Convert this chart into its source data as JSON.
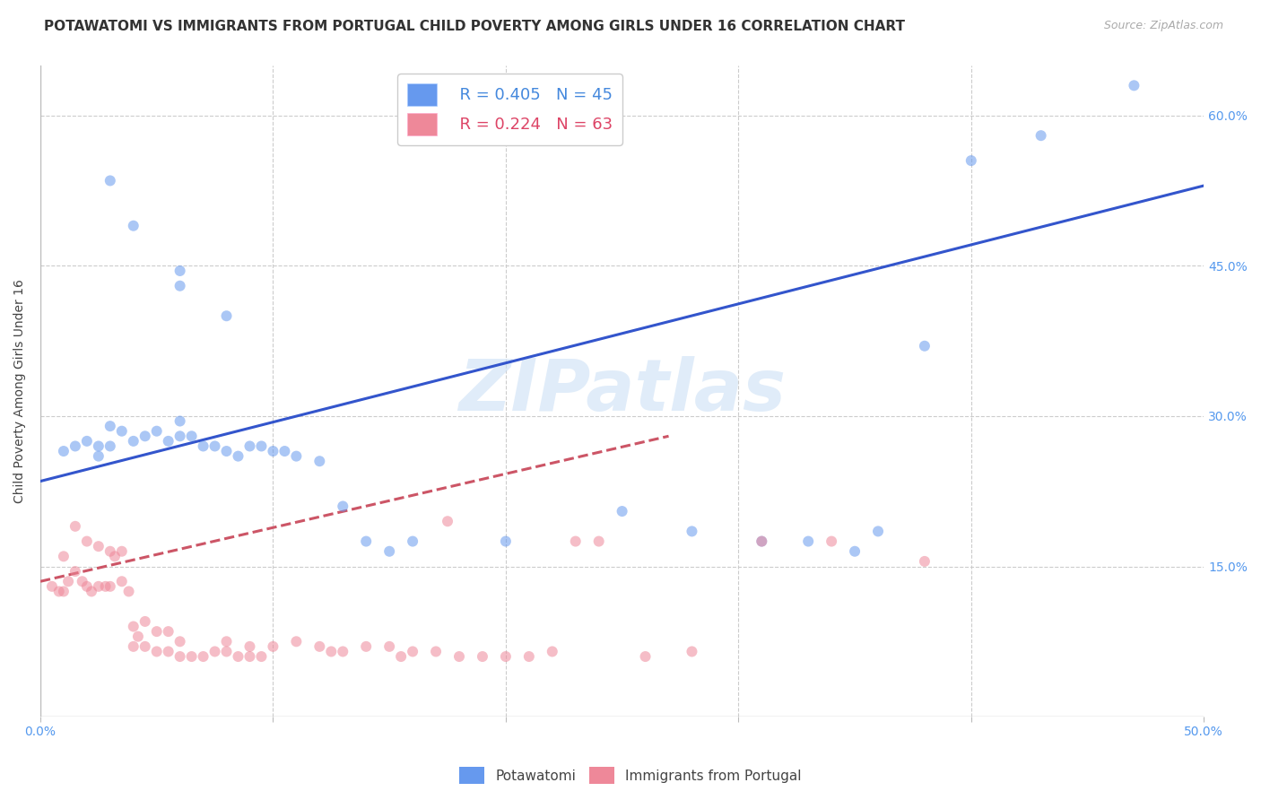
{
  "title": "POTAWATOMI VS IMMIGRANTS FROM PORTUGAL CHILD POVERTY AMONG GIRLS UNDER 16 CORRELATION CHART",
  "source": "Source: ZipAtlas.com",
  "ylabel": "Child Poverty Among Girls Under 16",
  "yticks": [
    0.0,
    0.15,
    0.3,
    0.45,
    0.6
  ],
  "ytick_labels": [
    "",
    "15.0%",
    "30.0%",
    "45.0%",
    "60.0%"
  ],
  "xlim": [
    0.0,
    0.5
  ],
  "ylim": [
    0.0,
    0.65
  ],
  "legend_blue_R": "R = 0.405",
  "legend_blue_N": "N = 45",
  "legend_pink_R": "R = 0.224",
  "legend_pink_N": "N = 63",
  "blue_color": "#6699ee",
  "pink_color": "#ee8899",
  "blue_line_color": "#3355cc",
  "pink_line_color": "#cc5566",
  "watermark": "ZIPatlas",
  "blue_points_x": [
    0.03,
    0.04,
    0.06,
    0.06,
    0.08,
    0.01,
    0.015,
    0.02,
    0.025,
    0.025,
    0.03,
    0.03,
    0.035,
    0.04,
    0.045,
    0.05,
    0.055,
    0.06,
    0.06,
    0.065,
    0.07,
    0.075,
    0.08,
    0.085,
    0.09,
    0.095,
    0.1,
    0.105,
    0.11,
    0.12,
    0.13,
    0.14,
    0.15,
    0.16,
    0.2,
    0.25,
    0.28,
    0.31,
    0.33,
    0.35,
    0.36,
    0.38,
    0.4,
    0.43,
    0.47
  ],
  "blue_points_y": [
    0.535,
    0.49,
    0.445,
    0.43,
    0.4,
    0.265,
    0.27,
    0.275,
    0.27,
    0.26,
    0.27,
    0.29,
    0.285,
    0.275,
    0.28,
    0.285,
    0.275,
    0.28,
    0.295,
    0.28,
    0.27,
    0.27,
    0.265,
    0.26,
    0.27,
    0.27,
    0.265,
    0.265,
    0.26,
    0.255,
    0.21,
    0.175,
    0.165,
    0.175,
    0.175,
    0.205,
    0.185,
    0.175,
    0.175,
    0.165,
    0.185,
    0.37,
    0.555,
    0.58,
    0.63
  ],
  "pink_points_x": [
    0.005,
    0.008,
    0.01,
    0.01,
    0.012,
    0.015,
    0.015,
    0.018,
    0.02,
    0.02,
    0.022,
    0.025,
    0.025,
    0.028,
    0.03,
    0.03,
    0.032,
    0.035,
    0.035,
    0.038,
    0.04,
    0.04,
    0.042,
    0.045,
    0.045,
    0.05,
    0.05,
    0.055,
    0.055,
    0.06,
    0.06,
    0.065,
    0.07,
    0.075,
    0.08,
    0.08,
    0.085,
    0.09,
    0.09,
    0.095,
    0.1,
    0.11,
    0.12,
    0.125,
    0.13,
    0.14,
    0.15,
    0.155,
    0.16,
    0.17,
    0.175,
    0.18,
    0.19,
    0.2,
    0.21,
    0.22,
    0.23,
    0.24,
    0.26,
    0.28,
    0.31,
    0.34,
    0.38
  ],
  "pink_points_y": [
    0.13,
    0.125,
    0.125,
    0.16,
    0.135,
    0.145,
    0.19,
    0.135,
    0.13,
    0.175,
    0.125,
    0.13,
    0.17,
    0.13,
    0.13,
    0.165,
    0.16,
    0.135,
    0.165,
    0.125,
    0.09,
    0.07,
    0.08,
    0.07,
    0.095,
    0.065,
    0.085,
    0.065,
    0.085,
    0.06,
    0.075,
    0.06,
    0.06,
    0.065,
    0.065,
    0.075,
    0.06,
    0.06,
    0.07,
    0.06,
    0.07,
    0.075,
    0.07,
    0.065,
    0.065,
    0.07,
    0.07,
    0.06,
    0.065,
    0.065,
    0.195,
    0.06,
    0.06,
    0.06,
    0.06,
    0.065,
    0.175,
    0.175,
    0.06,
    0.065,
    0.175,
    0.175,
    0.155
  ],
  "blue_line_x": [
    0.0,
    0.5
  ],
  "blue_line_y": [
    0.235,
    0.53
  ],
  "pink_line_x": [
    0.0,
    0.27
  ],
  "pink_line_y": [
    0.135,
    0.28
  ],
  "title_fontsize": 11,
  "axis_fontsize": 10,
  "tick_fontsize": 10,
  "point_size": 75,
  "point_alpha": 0.55,
  "grid_color": "#cccccc",
  "background_color": "#ffffff"
}
